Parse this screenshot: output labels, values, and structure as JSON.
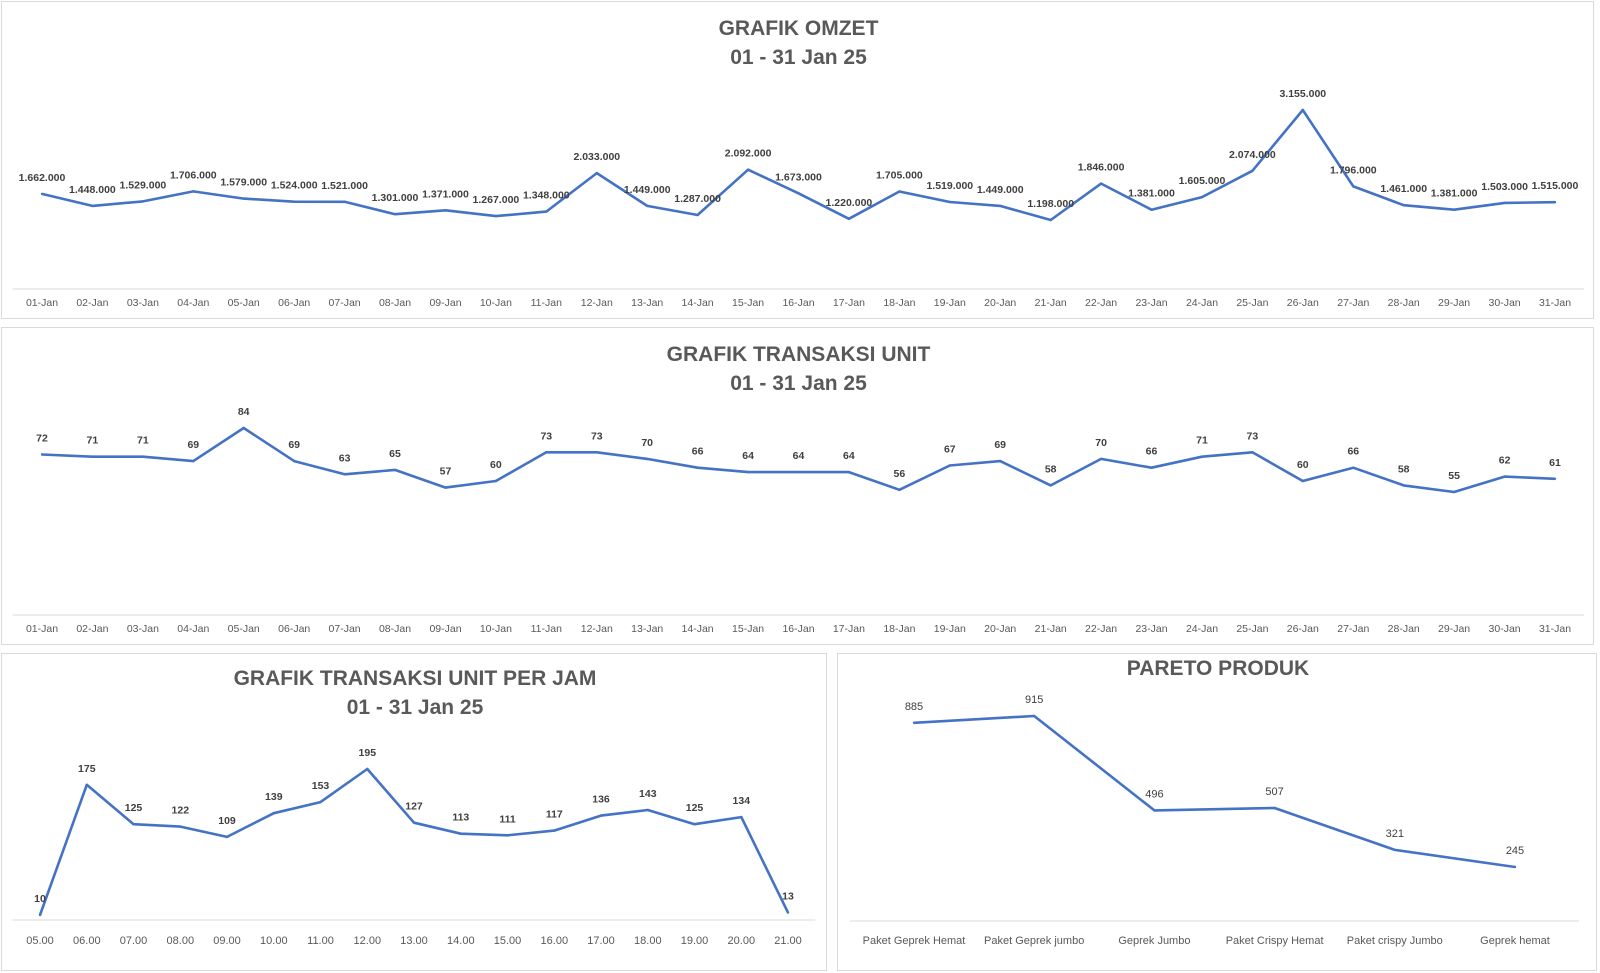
{
  "chart_data": [
    {
      "type": "line",
      "title": "GRAFIK OMZET",
      "subtitle": "01 - 31 Jan 25",
      "categories": [
        "01-Jan",
        "02-Jan",
        "03-Jan",
        "04-Jan",
        "05-Jan",
        "06-Jan",
        "07-Jan",
        "08-Jan",
        "09-Jan",
        "10-Jan",
        "11-Jan",
        "12-Jan",
        "13-Jan",
        "14-Jan",
        "15-Jan",
        "16-Jan",
        "17-Jan",
        "18-Jan",
        "19-Jan",
        "20-Jan",
        "21-Jan",
        "22-Jan",
        "23-Jan",
        "24-Jan",
        "25-Jan",
        "26-Jan",
        "27-Jan",
        "28-Jan",
        "29-Jan",
        "30-Jan",
        "31-Jan"
      ],
      "values": [
        1662000,
        1448000,
        1529000,
        1706000,
        1579000,
        1524000,
        1521000,
        1301000,
        1371000,
        1267000,
        1348000,
        2033000,
        1449000,
        1287000,
        2092000,
        1673000,
        1220000,
        1705000,
        1519000,
        1449000,
        1198000,
        1846000,
        1381000,
        1605000,
        2074000,
        3155000,
        1796000,
        1461000,
        1381000,
        1503000,
        1515000
      ],
      "data_labels": [
        "1.662.000",
        "1.448.000",
        "1.529.000",
        "1.706.000",
        "1.579.000",
        "1.524.000",
        "1.521.000",
        "1.301.000",
        "1.371.000",
        "1.267.000",
        "1.348.000",
        "2.033.000",
        "1.449.000",
        "1.287.000",
        "2.092.000",
        "1.673.000",
        "1.220.000",
        "1.705.000",
        "1.519.000",
        "1.449.000",
        "1.198.000",
        "1.846.000",
        "1.381.000",
        "1.605.000",
        "2.074.000",
        "3.155.000",
        "1.796.000",
        "1.461.000",
        "1.381.000",
        "1.503.000",
        "1.515.000"
      ],
      "xlabel": "",
      "ylabel": "",
      "grid": false,
      "line_color": "#4472c4"
    },
    {
      "type": "line",
      "title": "GRAFIK TRANSAKSI UNIT",
      "subtitle": "01 - 31 Jan 25",
      "categories": [
        "01-Jan",
        "02-Jan",
        "03-Jan",
        "04-Jan",
        "05-Jan",
        "06-Jan",
        "07-Jan",
        "08-Jan",
        "09-Jan",
        "10-Jan",
        "11-Jan",
        "12-Jan",
        "13-Jan",
        "14-Jan",
        "15-Jan",
        "16-Jan",
        "17-Jan",
        "18-Jan",
        "19-Jan",
        "20-Jan",
        "21-Jan",
        "22-Jan",
        "23-Jan",
        "24-Jan",
        "25-Jan",
        "26-Jan",
        "27-Jan",
        "28-Jan",
        "29-Jan",
        "30-Jan",
        "31-Jan"
      ],
      "values": [
        72,
        71,
        71,
        69,
        84,
        69,
        63,
        65,
        57,
        60,
        73,
        73,
        70,
        66,
        64,
        64,
        64,
        56,
        67,
        69,
        58,
        70,
        66,
        71,
        73,
        60,
        66,
        58,
        55,
        62,
        61
      ],
      "xlabel": "",
      "ylabel": "",
      "grid": false,
      "line_color": "#4472c4"
    },
    {
      "type": "line",
      "title": "GRAFIK TRANSAKSI UNIT PER JAM",
      "subtitle": "01 - 31 Jan 25",
      "categories": [
        "05.00",
        "06.00",
        "07.00",
        "08.00",
        "09.00",
        "10.00",
        "11.00",
        "12.00",
        "13.00",
        "14.00",
        "15.00",
        "16.00",
        "17.00",
        "18.00",
        "19.00",
        "20.00",
        "21.00"
      ],
      "values": [
        10,
        175,
        125,
        122,
        109,
        139,
        153,
        195,
        127,
        113,
        111,
        117,
        136,
        143,
        125,
        134,
        13
      ],
      "xlabel": "",
      "ylabel": "",
      "grid": false,
      "line_color": "#4472c4"
    },
    {
      "type": "line",
      "title": "PARETO PRODUK",
      "subtitle": "",
      "categories": [
        "Paket Geprek Hemat",
        "Paket Geprek jumbo",
        "Geprek Jumbo",
        "Paket Crispy Hemat",
        "Paket crispy Jumbo",
        "Geprek hemat"
      ],
      "values": [
        885,
        915,
        496,
        507,
        321,
        245
      ],
      "xlabel": "",
      "ylabel": "",
      "grid": false,
      "line_color": "#4472c4"
    }
  ]
}
